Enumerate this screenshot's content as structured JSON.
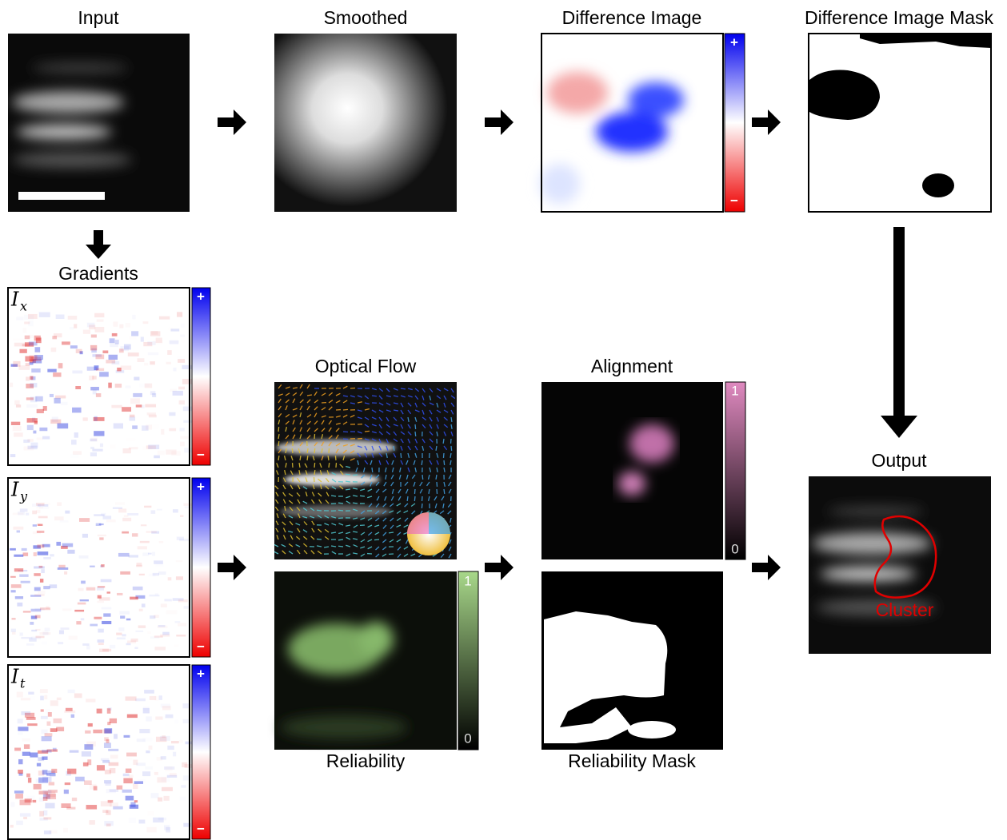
{
  "panels": {
    "input": {
      "title": "Input"
    },
    "smoothed": {
      "title": "Smoothed"
    },
    "difference": {
      "title": "Difference Image",
      "colorbar": {
        "top": "+",
        "bottom": "−"
      }
    },
    "difference_mask": {
      "title": "Difference Image Mask"
    },
    "gradients": {
      "title": "Gradients",
      "items": [
        {
          "symbol": "I",
          "subscript": "x",
          "colorbar": {
            "top": "+",
            "bottom": "−"
          }
        },
        {
          "symbol": "I",
          "subscript": "y",
          "colorbar": {
            "top": "+",
            "bottom": "−"
          }
        },
        {
          "symbol": "I",
          "subscript": "t",
          "colorbar": {
            "top": "+",
            "bottom": "−"
          }
        }
      ]
    },
    "optical_flow": {
      "title": "Optical Flow"
    },
    "reliability": {
      "title": "Reliability",
      "colorbar": {
        "top": "1",
        "bottom": "0"
      }
    },
    "alignment": {
      "title": "Alignment",
      "colorbar": {
        "top": "1",
        "bottom": "0"
      }
    },
    "reliability_mask": {
      "title": "Reliability Mask"
    },
    "output": {
      "title": "Output",
      "annotation": "Cluster"
    }
  }
}
